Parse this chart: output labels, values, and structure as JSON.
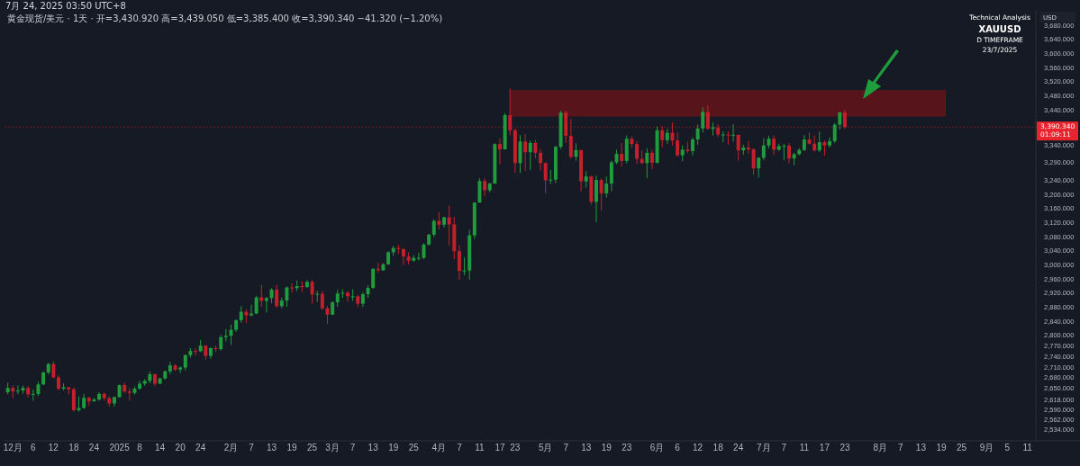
{
  "chart_data": {
    "type": "candlestick",
    "title": "XAUUSD",
    "subtitle": "D TIMEFRAME",
    "ylabel": "USD",
    "annotations": [
      "7月 24, 2025 03:50 UTC+8",
      "黄金现货/美元 · 1天 · 开=3,430.920 高=3,439.050 低=3,385.400 收=3,390.340 −41.320 (−1.20%)",
      "Technical Analysis",
      "23/7/2025",
      "01:09:11"
    ],
    "categories": [
      null,
      "12月",
      null,
      null,
      null,
      "6",
      null,
      null,
      null,
      "12",
      null,
      null,
      null,
      "18",
      null,
      null,
      null,
      "24",
      null,
      null,
      null,
      null,
      "2025",
      null,
      null,
      null,
      "8",
      null,
      null,
      null,
      "14",
      null,
      null,
      null,
      "20",
      null,
      null,
      null,
      "24",
      null,
      null,
      null,
      null,
      null,
      "2月",
      null,
      null,
      null,
      "7",
      null,
      null,
      null,
      "13",
      null,
      null,
      null,
      "19",
      null,
      null,
      null,
      "25",
      null,
      null,
      null,
      "3月",
      null,
      null,
      null,
      "7",
      null,
      null,
      null,
      "13",
      null,
      null,
      null,
      "19",
      null,
      null,
      null,
      "25",
      null,
      null,
      null,
      null,
      "4月",
      null,
      null,
      null,
      "7",
      null,
      null,
      null,
      "11",
      null,
      null,
      null,
      "17",
      null,
      null,
      "23",
      null,
      null,
      null,
      null,
      null,
      "5月",
      null,
      null,
      null,
      "7",
      null,
      null,
      null,
      "13",
      null,
      null,
      null,
      "19",
      null,
      null,
      null,
      "23",
      null,
      null,
      null,
      null,
      null,
      "6月",
      null,
      null,
      null,
      "6",
      null,
      null,
      null,
      "12",
      null,
      null,
      null,
      "18",
      null,
      null,
      null,
      "24",
      null,
      null,
      null,
      null,
      "7月",
      null,
      null,
      null,
      "7",
      null,
      null,
      null,
      "11",
      null,
      null,
      null,
      "17",
      null,
      null,
      null,
      "23",
      null,
      null,
      null,
      null,
      null,
      null,
      "8月",
      null,
      null,
      null,
      "7",
      null,
      null,
      null,
      "13",
      null,
      null,
      null,
      "19",
      null,
      null,
      null,
      "25",
      null,
      null,
      null,
      null,
      "9月",
      null,
      null,
      null,
      "5",
      null,
      null,
      null,
      "11",
      null
    ],
    "ohlc": [
      [
        2638,
        2665,
        2632,
        2650
      ],
      [
        2650,
        2657,
        2621,
        2640
      ],
      [
        2640,
        2657,
        2632,
        2643
      ],
      [
        2643,
        2657,
        2634,
        2650
      ],
      [
        2650,
        2655,
        2624,
        2632
      ],
      [
        2632,
        2645,
        2614,
        2633
      ],
      [
        2633,
        2668,
        2627,
        2660
      ],
      [
        2660,
        2697,
        2658,
        2694
      ],
      [
        2694,
        2721,
        2688,
        2718
      ],
      [
        2718,
        2726,
        2677,
        2680
      ],
      [
        2680,
        2686,
        2643,
        2648
      ],
      [
        2648,
        2663,
        2643,
        2652
      ],
      [
        2652,
        2653,
        2632,
        2646
      ],
      [
        2646,
        2651,
        2583,
        2587
      ],
      [
        2587,
        2626,
        2583,
        2593
      ],
      [
        2593,
        2633,
        2591,
        2622
      ],
      [
        2622,
        2625,
        2600,
        2612
      ],
      [
        2612,
        2622,
        2611,
        2617
      ],
      [
        2617,
        2638,
        2614,
        2633
      ],
      [
        2633,
        2637,
        2614,
        2621
      ],
      [
        2621,
        2626,
        2597,
        2606
      ],
      [
        2606,
        2626,
        2597,
        2624
      ],
      [
        2624,
        2660,
        2623,
        2658
      ],
      [
        2658,
        2665,
        2636,
        2640
      ],
      [
        2640,
        2649,
        2614,
        2636
      ],
      [
        2636,
        2654,
        2631,
        2648
      ],
      [
        2648,
        2670,
        2645,
        2662
      ],
      [
        2662,
        2675,
        2656,
        2670
      ],
      [
        2670,
        2697,
        2663,
        2689
      ],
      [
        2689,
        2690,
        2656,
        2662
      ],
      [
        2662,
        2679,
        2661,
        2677
      ],
      [
        2677,
        2700,
        2674,
        2697
      ],
      [
        2697,
        2724,
        2689,
        2714
      ],
      [
        2714,
        2717,
        2698,
        2702
      ],
      [
        2702,
        2711,
        2693,
        2708
      ],
      [
        2708,
        2745,
        2700,
        2743
      ],
      [
        2743,
        2763,
        2736,
        2755
      ],
      [
        2755,
        2763,
        2742,
        2754
      ],
      [
        2754,
        2786,
        2752,
        2770
      ],
      [
        2770,
        2772,
        2730,
        2741
      ],
      [
        2741,
        2765,
        2733,
        2763
      ],
      [
        2763,
        2771,
        2752,
        2760
      ],
      [
        2760,
        2800,
        2756,
        2794
      ],
      [
        2794,
        2817,
        2782,
        2798
      ],
      [
        2798,
        2830,
        2772,
        2815
      ],
      [
        2815,
        2845,
        2809,
        2842
      ],
      [
        2842,
        2882,
        2835,
        2866
      ],
      [
        2866,
        2873,
        2834,
        2856
      ],
      [
        2856,
        2886,
        2853,
        2861
      ],
      [
        2861,
        2911,
        2860,
        2907
      ],
      [
        2907,
        2942,
        2880,
        2897
      ],
      [
        2897,
        2908,
        2864,
        2905
      ],
      [
        2905,
        2933,
        2891,
        2929
      ],
      [
        2929,
        2942,
        2877,
        2882
      ],
      [
        2882,
        2906,
        2876,
        2898
      ],
      [
        2898,
        2938,
        2880,
        2935
      ],
      [
        2935,
        2947,
        2920,
        2933
      ],
      [
        2933,
        2955,
        2925,
        2939
      ],
      [
        2939,
        2953,
        2922,
        2936
      ],
      [
        2936,
        2956,
        2935,
        2951
      ],
      [
        2951,
        2956,
        2889,
        2915
      ],
      [
        2915,
        2925,
        2894,
        2917
      ],
      [
        2917,
        2925,
        2871,
        2876
      ],
      [
        2876,
        2882,
        2832,
        2858
      ],
      [
        2858,
        2896,
        2857,
        2893
      ],
      [
        2893,
        2928,
        2880,
        2918
      ],
      [
        2918,
        2930,
        2905,
        2920
      ],
      [
        2920,
        2925,
        2895,
        2910
      ],
      [
        2910,
        2930,
        2897,
        2910
      ],
      [
        2910,
        2914,
        2880,
        2889
      ],
      [
        2889,
        2922,
        2880,
        2916
      ],
      [
        2916,
        2941,
        2905,
        2934
      ],
      [
        2934,
        2990,
        2931,
        2988
      ],
      [
        2988,
        3005,
        2977,
        2984
      ],
      [
        2984,
        3004,
        2982,
        3001
      ],
      [
        3001,
        3038,
        2999,
        3035
      ],
      [
        3035,
        3053,
        3025,
        3047
      ],
      [
        3047,
        3057,
        3030,
        3044
      ],
      [
        3044,
        3047,
        2999,
        3023
      ],
      [
        3023,
        3035,
        3000,
        3011
      ],
      [
        3011,
        3026,
        3008,
        3019
      ],
      [
        3019,
        3033,
        3012,
        3019
      ],
      [
        3019,
        3060,
        3016,
        3057
      ],
      [
        3057,
        3087,
        3054,
        3085
      ],
      [
        3085,
        3128,
        3078,
        3124
      ],
      [
        3124,
        3149,
        3100,
        3113
      ],
      [
        3113,
        3136,
        3105,
        3134
      ],
      [
        3134,
        3167,
        3054,
        3114
      ],
      [
        3114,
        3136,
        3015,
        3038
      ],
      [
        3038,
        3055,
        2956,
        2982
      ],
      [
        2982,
        3020,
        2970,
        2983
      ],
      [
        2983,
        3099,
        2957,
        3083
      ],
      [
        3083,
        3176,
        3073,
        3176
      ],
      [
        3176,
        3245,
        3175,
        3237
      ],
      [
        3237,
        3245,
        3194,
        3211
      ],
      [
        3211,
        3232,
        3205,
        3230
      ],
      [
        3230,
        3344,
        3229,
        3342
      ],
      [
        3342,
        3358,
        3284,
        3327
      ],
      [
        3327,
        3430,
        3326,
        3424
      ],
      [
        3424,
        3500,
        3367,
        3381
      ],
      [
        3381,
        3386,
        3260,
        3288
      ],
      [
        3288,
        3367,
        3260,
        3349
      ],
      [
        3349,
        3370,
        3266,
        3319
      ],
      [
        3319,
        3352,
        3268,
        3345
      ],
      [
        3345,
        3353,
        3301,
        3317
      ],
      [
        3317,
        3328,
        3267,
        3288
      ],
      [
        3288,
        3290,
        3202,
        3239
      ],
      [
        3239,
        3269,
        3229,
        3241
      ],
      [
        3241,
        3337,
        3231,
        3334
      ],
      [
        3334,
        3436,
        3328,
        3431
      ],
      [
        3431,
        3437,
        3345,
        3365
      ],
      [
        3365,
        3414,
        3300,
        3306
      ],
      [
        3306,
        3344,
        3295,
        3325
      ],
      [
        3325,
        3325,
        3208,
        3236
      ],
      [
        3236,
        3265,
        3219,
        3250
      ],
      [
        3250,
        3252,
        3170,
        3178
      ],
      [
        3178,
        3252,
        3120,
        3240
      ],
      [
        3240,
        3244,
        3154,
        3202
      ],
      [
        3202,
        3250,
        3190,
        3230
      ],
      [
        3230,
        3295,
        3208,
        3290
      ],
      [
        3290,
        3326,
        3285,
        3314
      ],
      [
        3314,
        3345,
        3278,
        3294
      ],
      [
        3294,
        3366,
        3287,
        3357
      ],
      [
        3357,
        3364,
        3331,
        3342
      ],
      [
        3342,
        3350,
        3285,
        3300
      ],
      [
        3300,
        3325,
        3285,
        3288
      ],
      [
        3288,
        3330,
        3245,
        3317
      ],
      [
        3317,
        3326,
        3271,
        3289
      ],
      [
        3289,
        3392,
        3287,
        3381
      ],
      [
        3381,
        3392,
        3333,
        3353
      ],
      [
        3353,
        3385,
        3343,
        3374
      ],
      [
        3374,
        3403,
        3338,
        3352
      ],
      [
        3352,
        3375,
        3306,
        3310
      ],
      [
        3310,
        3338,
        3293,
        3326
      ],
      [
        3326,
        3348,
        3317,
        3322
      ],
      [
        3322,
        3361,
        3310,
        3355
      ],
      [
        3355,
        3397,
        3340,
        3386
      ],
      [
        3386,
        3446,
        3375,
        3433
      ],
      [
        3433,
        3452,
        3383,
        3385
      ],
      [
        3385,
        3403,
        3366,
        3389
      ],
      [
        3389,
        3398,
        3362,
        3369
      ],
      [
        3369,
        3378,
        3347,
        3369
      ],
      [
        3369,
        3378,
        3340,
        3368
      ],
      [
        3368,
        3398,
        3349,
        3368
      ],
      [
        3368,
        3369,
        3295,
        3324
      ],
      [
        3324,
        3340,
        3312,
        3332
      ],
      [
        3332,
        3350,
        3315,
        3327
      ],
      [
        3327,
        3330,
        3255,
        3273
      ],
      [
        3273,
        3305,
        3247,
        3303
      ],
      [
        3303,
        3358,
        3296,
        3338
      ],
      [
        3338,
        3365,
        3330,
        3357
      ],
      [
        3357,
        3366,
        3311,
        3326
      ],
      [
        3326,
        3343,
        3322,
        3336
      ],
      [
        3336,
        3342,
        3296,
        3337
      ],
      [
        3337,
        3345,
        3287,
        3301
      ],
      [
        3301,
        3317,
        3282,
        3313
      ],
      [
        3313,
        3330,
        3310,
        3325
      ],
      [
        3325,
        3368,
        3322,
        3355
      ],
      [
        3355,
        3375,
        3341,
        3343
      ],
      [
        3343,
        3366,
        3320,
        3324
      ],
      [
        3324,
        3377,
        3319,
        3347
      ],
      [
        3347,
        3352,
        3309,
        3338
      ],
      [
        3338,
        3361,
        3332,
        3350
      ],
      [
        3350,
        3402,
        3345,
        3397
      ],
      [
        3397,
        3433,
        3383,
        3431.66
      ],
      [
        3430.92,
        3439.05,
        3385.4,
        3390.34
      ],
      null,
      null,
      null,
      null,
      null,
      null,
      null,
      null,
      null,
      null,
      null,
      null,
      null,
      null,
      null,
      null,
      null,
      null,
      null,
      null,
      null,
      null,
      null,
      null,
      null,
      null,
      null,
      null,
      null,
      null,
      null,
      null,
      null,
      null,
      null,
      null,
      null
    ],
    "ylim": [
      2500,
      3720
    ],
    "yticks": [
      {
        "value": 2534,
        "label": "2,534.000"
      },
      {
        "value": 2562,
        "label": "2,562.000"
      },
      {
        "value": 2590,
        "label": "2,590.000"
      },
      {
        "value": 2618,
        "label": "2,618.000"
      },
      {
        "value": 2650,
        "label": "2,650.000"
      },
      {
        "value": 2680,
        "label": "2,680.000"
      },
      {
        "value": 2710,
        "label": "2,710.000"
      },
      {
        "value": 2740,
        "label": "2,740.000"
      },
      {
        "value": 2770,
        "label": "2,770.000"
      },
      {
        "value": 2800,
        "label": "2,800.000"
      },
      {
        "value": 2840,
        "label": "2,840.000"
      },
      {
        "value": 2880,
        "label": "2,880.000"
      },
      {
        "value": 2920,
        "label": "2,920.000"
      },
      {
        "value": 2960,
        "label": "2,960.000"
      },
      {
        "value": 3000,
        "label": "3,000.000"
      },
      {
        "value": 3040,
        "label": "3,040.000"
      },
      {
        "value": 3080,
        "label": "3,080.000"
      },
      {
        "value": 3120,
        "label": "3,120.000"
      },
      {
        "value": 3160,
        "label": "3,160.000"
      },
      {
        "value": 3200,
        "label": "3,200.000"
      },
      {
        "value": 3240,
        "label": "3,240.000"
      },
      {
        "value": 3290,
        "label": "3,290.000"
      },
      {
        "value": 3340,
        "label": "3,340.000"
      },
      {
        "value": 3440,
        "label": "3,440.000"
      },
      {
        "value": 3480,
        "label": "3,480.000"
      },
      {
        "value": 3520,
        "label": "3,520.000"
      },
      {
        "value": 3560,
        "label": "3,560.000"
      },
      {
        "value": 3600,
        "label": "3,600.000"
      },
      {
        "value": 3640,
        "label": "3,640.000"
      },
      {
        "value": 3680,
        "label": "3,680.000"
      }
    ],
    "ref_lines": [
      {
        "axis": "y",
        "value": 3390.34,
        "label": "3,390.340",
        "color": "#e8242e",
        "line_style": "dotted"
      }
    ],
    "bands": [
      {
        "axis": "y",
        "from": 3420,
        "to": 3495,
        "color": "#5e141b"
      }
    ]
  }
}
